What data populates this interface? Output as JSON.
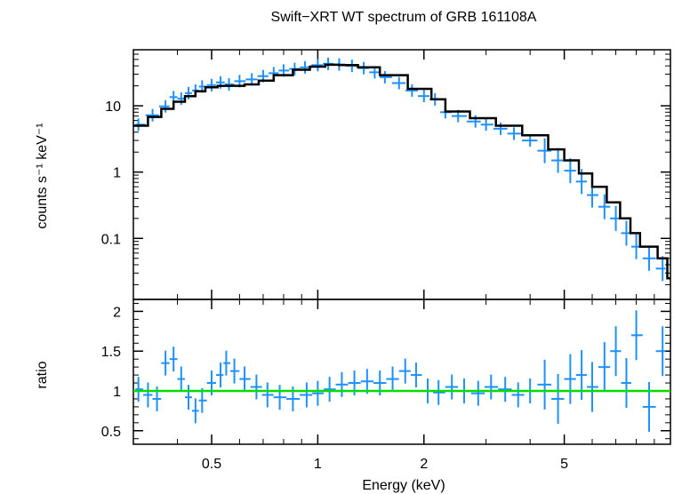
{
  "chart_data": {
    "type": "scatter",
    "title": "Swift−XRT WT spectrum of GRB 161108A",
    "xlabel": "Energy (keV)",
    "xscale": "log",
    "xlim": [
      0.3,
      10
    ],
    "xticks": [
      {
        "value": 0.5,
        "label": "0.5"
      },
      {
        "value": 1,
        "label": "1"
      },
      {
        "value": 2,
        "label": "2"
      },
      {
        "value": 5,
        "label": "5"
      }
    ],
    "panels": [
      {
        "name": "spectrum",
        "ylabel": "counts s⁻¹ keV⁻¹",
        "yscale": "log",
        "ylim": [
          0.012,
          70
        ],
        "yticks": [
          {
            "value": 10,
            "label": "10"
          },
          {
            "value": 1,
            "label": "1"
          },
          {
            "value": 0.1,
            "label": "0.1"
          }
        ],
        "series": [
          {
            "type": "scatter_errorbar",
            "color": "#1e90ff",
            "points": [
              {
                "x": 0.31,
                "y": 5.2
              },
              {
                "x": 0.34,
                "y": 7.2
              },
              {
                "x": 0.37,
                "y": 9.8
              },
              {
                "x": 0.39,
                "y": 13.5
              },
              {
                "x": 0.41,
                "y": 12.8
              },
              {
                "x": 0.43,
                "y": 15.5
              },
              {
                "x": 0.45,
                "y": 17.0
              },
              {
                "x": 0.47,
                "y": 19.5
              },
              {
                "x": 0.5,
                "y": 20.5
              },
              {
                "x": 0.53,
                "y": 22.5
              },
              {
                "x": 0.56,
                "y": 21.0
              },
              {
                "x": 0.6,
                "y": 23.5
              },
              {
                "x": 0.65,
                "y": 25.0
              },
              {
                "x": 0.7,
                "y": 28.0
              },
              {
                "x": 0.75,
                "y": 31.0
              },
              {
                "x": 0.8,
                "y": 34.0
              },
              {
                "x": 0.86,
                "y": 36.0
              },
              {
                "x": 0.92,
                "y": 38.0
              },
              {
                "x": 1.0,
                "y": 41.0
              },
              {
                "x": 1.07,
                "y": 43.0
              },
              {
                "x": 1.15,
                "y": 42.0
              },
              {
                "x": 1.25,
                "y": 40.0
              },
              {
                "x": 1.35,
                "y": 37.0
              },
              {
                "x": 1.45,
                "y": 32.0
              },
              {
                "x": 1.55,
                "y": 27.0
              },
              {
                "x": 1.7,
                "y": 22.0
              },
              {
                "x": 1.85,
                "y": 17.0
              },
              {
                "x": 2.0,
                "y": 14.0
              },
              {
                "x": 2.15,
                "y": 12.5
              },
              {
                "x": 2.3,
                "y": 8.0
              },
              {
                "x": 2.5,
                "y": 7.0
              },
              {
                "x": 2.8,
                "y": 5.8
              },
              {
                "x": 3.0,
                "y": 5.2
              },
              {
                "x": 3.3,
                "y": 4.5
              },
              {
                "x": 3.6,
                "y": 3.8
              },
              {
                "x": 4.0,
                "y": 3.0
              },
              {
                "x": 4.4,
                "y": 2.1
              },
              {
                "x": 4.8,
                "y": 1.5
              },
              {
                "x": 5.2,
                "y": 1.05
              },
              {
                "x": 5.6,
                "y": 0.72
              },
              {
                "x": 6.0,
                "y": 0.45
              },
              {
                "x": 6.5,
                "y": 0.3
              },
              {
                "x": 7.0,
                "y": 0.2
              },
              {
                "x": 7.5,
                "y": 0.12
              },
              {
                "x": 8.0,
                "y": 0.075
              },
              {
                "x": 8.7,
                "y": 0.05
              },
              {
                "x": 9.5,
                "y": 0.035
              }
            ]
          },
          {
            "type": "step_model",
            "color": "#000000",
            "points": [
              {
                "x": 0.3,
                "y": 5.0
              },
              {
                "x": 0.33,
                "y": 6.8
              },
              {
                "x": 0.36,
                "y": 9.0
              },
              {
                "x": 0.39,
                "y": 11.5
              },
              {
                "x": 0.42,
                "y": 14.0
              },
              {
                "x": 0.45,
                "y": 16.5
              },
              {
                "x": 0.48,
                "y": 19.0
              },
              {
                "x": 0.52,
                "y": 20.0
              },
              {
                "x": 0.57,
                "y": 20.0
              },
              {
                "x": 0.62,
                "y": 21.0
              },
              {
                "x": 0.68,
                "y": 24.0
              },
              {
                "x": 0.75,
                "y": 29.0
              },
              {
                "x": 0.85,
                "y": 35.0
              },
              {
                "x": 0.95,
                "y": 39.0
              },
              {
                "x": 1.05,
                "y": 41.5
              },
              {
                "x": 1.15,
                "y": 41.0
              },
              {
                "x": 1.3,
                "y": 38.0
              },
              {
                "x": 1.5,
                "y": 29.0
              },
              {
                "x": 1.8,
                "y": 18.0
              },
              {
                "x": 2.1,
                "y": 12.5
              },
              {
                "x": 2.3,
                "y": 8.2
              },
              {
                "x": 2.7,
                "y": 6.5
              },
              {
                "x": 3.2,
                "y": 5.0
              },
              {
                "x": 3.8,
                "y": 3.6
              },
              {
                "x": 4.5,
                "y": 2.2
              },
              {
                "x": 5.0,
                "y": 1.5
              },
              {
                "x": 5.5,
                "y": 0.95
              },
              {
                "x": 6.0,
                "y": 0.6
              },
              {
                "x": 6.6,
                "y": 0.35
              },
              {
                "x": 7.2,
                "y": 0.2
              },
              {
                "x": 7.7,
                "y": 0.12
              },
              {
                "x": 8.2,
                "y": 0.075
              },
              {
                "x": 9.2,
                "y": 0.05
              },
              {
                "x": 9.8,
                "y": 0.025
              },
              {
                "x": 10.0,
                "y": 0.025
              }
            ]
          }
        ]
      },
      {
        "name": "ratio",
        "ylabel": "ratio",
        "yscale": "linear",
        "ylim": [
          0.33,
          2.15
        ],
        "yticks": [
          {
            "value": 0.5,
            "label": "0.5"
          },
          {
            "value": 1,
            "label": "1"
          },
          {
            "value": 1.5,
            "label": "1.5"
          },
          {
            "value": 2,
            "label": "2"
          }
        ],
        "reference_line": {
          "y": 1,
          "color": "#00dd00"
        },
        "series": [
          {
            "type": "scatter_errorbar",
            "color": "#1e90ff",
            "points": [
              {
                "x": 0.31,
                "y": 1.02
              },
              {
                "x": 0.33,
                "y": 0.95
              },
              {
                "x": 0.35,
                "y": 0.9
              },
              {
                "x": 0.37,
                "y": 1.35
              },
              {
                "x": 0.39,
                "y": 1.4
              },
              {
                "x": 0.41,
                "y": 1.15
              },
              {
                "x": 0.43,
                "y": 0.92
              },
              {
                "x": 0.45,
                "y": 0.75
              },
              {
                "x": 0.47,
                "y": 0.88
              },
              {
                "x": 0.5,
                "y": 1.1
              },
              {
                "x": 0.53,
                "y": 1.2
              },
              {
                "x": 0.55,
                "y": 1.35
              },
              {
                "x": 0.58,
                "y": 1.25
              },
              {
                "x": 0.62,
                "y": 1.15
              },
              {
                "x": 0.67,
                "y": 1.05
              },
              {
                "x": 0.72,
                "y": 0.95
              },
              {
                "x": 0.78,
                "y": 0.92
              },
              {
                "x": 0.85,
                "y": 0.9
              },
              {
                "x": 0.93,
                "y": 0.95
              },
              {
                "x": 1.0,
                "y": 0.97
              },
              {
                "x": 1.08,
                "y": 1.02
              },
              {
                "x": 1.17,
                "y": 1.08
              },
              {
                "x": 1.27,
                "y": 1.1
              },
              {
                "x": 1.38,
                "y": 1.12
              },
              {
                "x": 1.5,
                "y": 1.1
              },
              {
                "x": 1.63,
                "y": 1.15
              },
              {
                "x": 1.77,
                "y": 1.25
              },
              {
                "x": 1.9,
                "y": 1.2
              },
              {
                "x": 2.05,
                "y": 1.0
              },
              {
                "x": 2.2,
                "y": 0.98
              },
              {
                "x": 2.4,
                "y": 1.05
              },
              {
                "x": 2.6,
                "y": 1.0
              },
              {
                "x": 2.85,
                "y": 0.97
              },
              {
                "x": 3.1,
                "y": 1.05
              },
              {
                "x": 3.4,
                "y": 1.02
              },
              {
                "x": 3.7,
                "y": 0.95
              },
              {
                "x": 4.0,
                "y": 1.0
              },
              {
                "x": 4.4,
                "y": 1.08
              },
              {
                "x": 4.8,
                "y": 0.9
              },
              {
                "x": 5.2,
                "y": 1.15
              },
              {
                "x": 5.6,
                "y": 1.2
              },
              {
                "x": 6.0,
                "y": 1.05
              },
              {
                "x": 6.5,
                "y": 1.3
              },
              {
                "x": 7.0,
                "y": 1.5
              },
              {
                "x": 7.5,
                "y": 1.1
              },
              {
                "x": 8.0,
                "y": 1.7
              },
              {
                "x": 8.7,
                "y": 0.8
              },
              {
                "x": 9.5,
                "y": 1.5
              }
            ]
          }
        ]
      }
    ]
  }
}
